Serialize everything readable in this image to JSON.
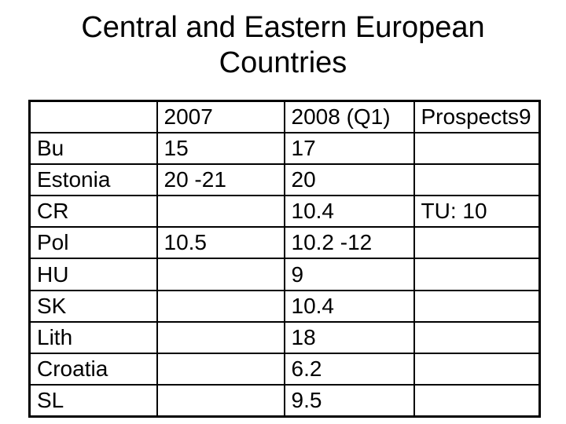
{
  "slide": {
    "title": "Central and Eastern European Countries"
  },
  "table": {
    "headers": [
      "",
      "2007",
      "2008 (Q1)",
      "Prospects9"
    ],
    "rows": [
      [
        "Bu",
        "15",
        "17",
        ""
      ],
      [
        "Estonia",
        "20 -21",
        "20",
        ""
      ],
      [
        "CR",
        "",
        "10.4",
        "TU: 10"
      ],
      [
        "Pol",
        "10.5",
        "10.2 -12",
        ""
      ],
      [
        "HU",
        "",
        "9",
        ""
      ],
      [
        "SK",
        "",
        "10.4",
        ""
      ],
      [
        "Lith",
        "",
        "18",
        ""
      ],
      [
        "Croatia",
        "",
        "6.2",
        ""
      ],
      [
        "SL",
        "",
        "9.5",
        ""
      ]
    ]
  }
}
